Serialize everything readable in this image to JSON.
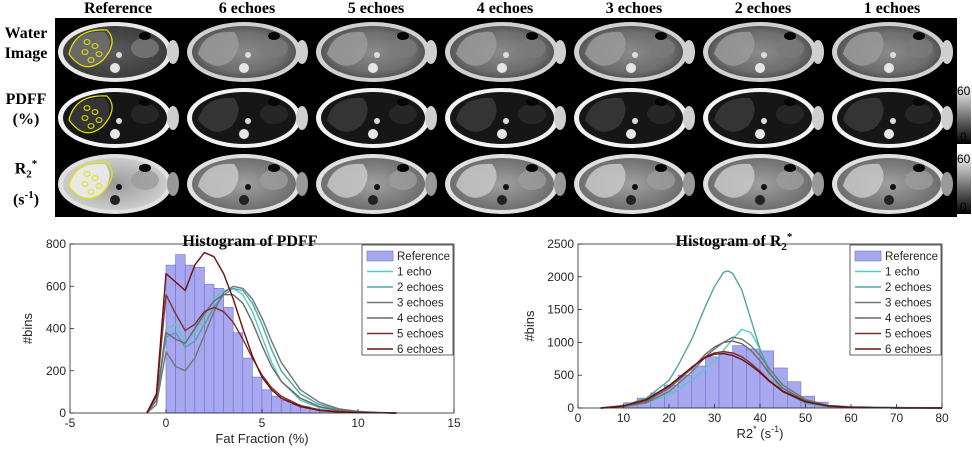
{
  "figure": {
    "columns": [
      "Reference",
      "6 echoes",
      "5 echoes",
      "4 echoes",
      "3 echoes",
      "2 echoes",
      "1 echoes"
    ],
    "rows": [
      {
        "line1": "Water",
        "line2": "Image"
      },
      {
        "line1": "PDFF",
        "line2": "(%)"
      },
      {
        "line1": "R",
        "sub": "2",
        "sup": "*",
        "line2_pre": "(s",
        "line2_sup": "-1",
        "line2_post": ")"
      }
    ],
    "colorbars": [
      {
        "max": "60",
        "min": "0"
      },
      {
        "max": "60",
        "min": "0"
      }
    ]
  },
  "colors": {
    "reference_fill": "#a8a8f0",
    "reference_edge": "#7070c8",
    "roi": "#e6e600",
    "series": [
      "#5ac8c8",
      "#50a5a5",
      "#6e7878",
      "#6e6868",
      "#7a3030",
      "#6e0f0f"
    ]
  },
  "chart_data": [
    {
      "type": "histogram",
      "title": "Histogram of PDFF",
      "xlabel": "Fat Fraction (%)",
      "ylabel": "#bins",
      "xlim": [
        -5,
        15
      ],
      "ylim": [
        0,
        800
      ],
      "xticks": [
        -5,
        0,
        5,
        10,
        15
      ],
      "yticks": [
        0,
        200,
        400,
        600,
        800
      ],
      "legend": "top-right",
      "bins": {
        "name": "Reference",
        "edges": [
          0,
          0.5,
          1,
          1.5,
          2,
          2.5,
          3,
          3.5,
          4,
          4.5,
          5,
          5.5,
          6,
          6.5,
          7,
          7.5,
          8,
          8.5,
          9,
          9.5,
          10
        ],
        "counts": [
          700,
          750,
          700,
          690,
          610,
          590,
          500,
          380,
          260,
          170,
          110,
          80,
          60,
          40,
          30,
          20,
          12,
          8,
          5,
          3
        ]
      },
      "series": [
        {
          "name": "1 echo",
          "x": [
            -1,
            -0.5,
            0,
            0.5,
            1,
            1.5,
            2,
            2.5,
            3,
            3.5,
            4,
            4.5,
            5,
            5.5,
            6,
            7,
            8,
            9,
            10,
            11,
            12
          ],
          "y": [
            0,
            60,
            400,
            420,
            340,
            380,
            460,
            540,
            580,
            590,
            560,
            480,
            360,
            240,
            150,
            60,
            25,
            10,
            5,
            2,
            0
          ]
        },
        {
          "name": "2 echoes",
          "x": [
            -1,
            -0.5,
            0,
            0.5,
            1,
            1.5,
            2,
            2.5,
            3,
            3.5,
            4,
            4.5,
            5,
            5.5,
            6,
            7,
            8,
            9,
            10,
            11,
            12
          ],
          "y": [
            0,
            60,
            360,
            380,
            310,
            340,
            420,
            500,
            560,
            590,
            580,
            520,
            420,
            300,
            200,
            90,
            40,
            15,
            6,
            2,
            0
          ]
        },
        {
          "name": "3 echoes",
          "x": [
            -1,
            -0.5,
            0,
            0.5,
            1,
            1.5,
            2,
            2.5,
            3,
            3.5,
            4,
            4.5,
            5,
            5.5,
            6,
            7,
            8,
            9,
            10,
            11,
            12
          ],
          "y": [
            0,
            40,
            290,
            220,
            200,
            260,
            370,
            480,
            570,
            600,
            590,
            540,
            450,
            340,
            240,
            110,
            50,
            20,
            8,
            3,
            0
          ]
        },
        {
          "name": "4 echoes",
          "x": [
            -1,
            -0.5,
            0,
            0.5,
            1,
            1.5,
            2,
            2.5,
            3,
            3.5,
            4,
            4.5,
            5,
            5.5,
            6,
            7,
            8,
            9,
            10,
            11,
            12
          ],
          "y": [
            0,
            60,
            380,
            350,
            330,
            400,
            470,
            530,
            560,
            560,
            520,
            430,
            320,
            220,
            150,
            70,
            30,
            12,
            5,
            2,
            0
          ]
        },
        {
          "name": "5 echoes",
          "x": [
            -1,
            -0.5,
            0,
            0.5,
            1,
            1.5,
            2,
            2.5,
            3,
            3.5,
            4,
            4.5,
            5,
            5.5,
            6,
            7,
            8,
            9,
            10,
            11,
            12
          ],
          "y": [
            0,
            80,
            560,
            470,
            390,
            420,
            480,
            500,
            480,
            430,
            350,
            260,
            180,
            120,
            80,
            35,
            15,
            6,
            3,
            1,
            0
          ]
        },
        {
          "name": "6 echoes",
          "x": [
            -1,
            -0.5,
            0,
            0.5,
            1,
            1.5,
            2,
            2.5,
            3,
            3.5,
            4,
            4.5,
            5,
            5.5,
            6,
            7,
            8,
            9,
            10,
            11,
            12
          ],
          "y": [
            0,
            90,
            660,
            620,
            580,
            700,
            760,
            740,
            660,
            540,
            400,
            270,
            170,
            110,
            70,
            30,
            12,
            5,
            2,
            1,
            0
          ]
        }
      ]
    },
    {
      "type": "histogram",
      "title": "Histogram of R",
      "title_sub": "2",
      "title_sup": "*",
      "xlabel": "R2",
      "xlabel_sup": "*",
      "xlabel_unit": "(s",
      "xlabel_unit_sup": "-1",
      "xlabel_end": ")",
      "ylabel": "#bins",
      "xlim": [
        0,
        80
      ],
      "ylim": [
        0,
        2500
      ],
      "xticks": [
        0,
        10,
        20,
        30,
        40,
        50,
        60,
        70,
        80
      ],
      "yticks": [
        0,
        500,
        1000,
        1500,
        2000,
        2500
      ],
      "legend": "top-right",
      "bins": {
        "name": "Reference",
        "edges": [
          10,
          13,
          16,
          19,
          22,
          25,
          28,
          31,
          34,
          37,
          40,
          43,
          46,
          49,
          52,
          55,
          58,
          61
        ],
        "counts": [
          80,
          150,
          230,
          350,
          500,
          640,
          780,
          840,
          950,
          900,
          870,
          610,
          400,
          180,
          90,
          30,
          10
        ]
      },
      "series": [
        {
          "name": "1 echo",
          "x": [
            5,
            10,
            15,
            20,
            25,
            28,
            30,
            32,
            34,
            36,
            38,
            40,
            42,
            45,
            50,
            55,
            60,
            65,
            70,
            75,
            80
          ],
          "y": [
            0,
            20,
            80,
            200,
            420,
            600,
            720,
            880,
            1050,
            1200,
            1150,
            900,
            600,
            300,
            100,
            40,
            20,
            15,
            10,
            5,
            0
          ]
        },
        {
          "name": "2 echoes",
          "x": [
            5,
            10,
            15,
            20,
            22,
            25,
            28,
            30,
            32,
            33,
            34,
            36,
            38,
            40,
            42,
            45,
            50,
            55,
            60,
            70,
            80
          ],
          "y": [
            0,
            40,
            150,
            420,
            650,
            1050,
            1550,
            1850,
            2070,
            2090,
            2050,
            1800,
            1350,
            900,
            550,
            250,
            70,
            20,
            8,
            2,
            0
          ]
        },
        {
          "name": "3 echoes",
          "x": [
            5,
            10,
            15,
            20,
            25,
            28,
            30,
            32,
            34,
            36,
            38,
            40,
            42,
            45,
            50,
            55,
            60,
            65,
            70,
            75,
            80
          ],
          "y": [
            0,
            20,
            80,
            250,
            550,
            780,
            900,
            1000,
            1080,
            1050,
            950,
            800,
            600,
            350,
            130,
            40,
            12,
            5,
            2,
            1,
            0
          ]
        },
        {
          "name": "4 echoes",
          "x": [
            5,
            10,
            15,
            20,
            25,
            28,
            30,
            32,
            34,
            36,
            38,
            40,
            42,
            45,
            50,
            55,
            60,
            65,
            70,
            75,
            80
          ],
          "y": [
            0,
            25,
            100,
            300,
            600,
            820,
            930,
            1000,
            1020,
            980,
            880,
            720,
            530,
            300,
            110,
            35,
            10,
            4,
            2,
            1,
            0
          ]
        },
        {
          "name": "5 echoes",
          "x": [
            5,
            10,
            15,
            20,
            25,
            28,
            30,
            32,
            34,
            36,
            38,
            40,
            42,
            45,
            50,
            55,
            60,
            65,
            70,
            75,
            80
          ],
          "y": [
            0,
            30,
            120,
            330,
            620,
            780,
            840,
            860,
            840,
            780,
            680,
            560,
            420,
            260,
            100,
            30,
            10,
            4,
            2,
            1,
            0
          ]
        },
        {
          "name": "6 echoes",
          "x": [
            5,
            10,
            15,
            20,
            25,
            28,
            30,
            32,
            34,
            36,
            38,
            40,
            42,
            45,
            50,
            55,
            60,
            65,
            70,
            75,
            80
          ],
          "y": [
            0,
            30,
            130,
            340,
            620,
            770,
            820,
            830,
            800,
            740,
            650,
            540,
            410,
            250,
            95,
            30,
            10,
            4,
            2,
            1,
            0
          ]
        }
      ]
    }
  ]
}
